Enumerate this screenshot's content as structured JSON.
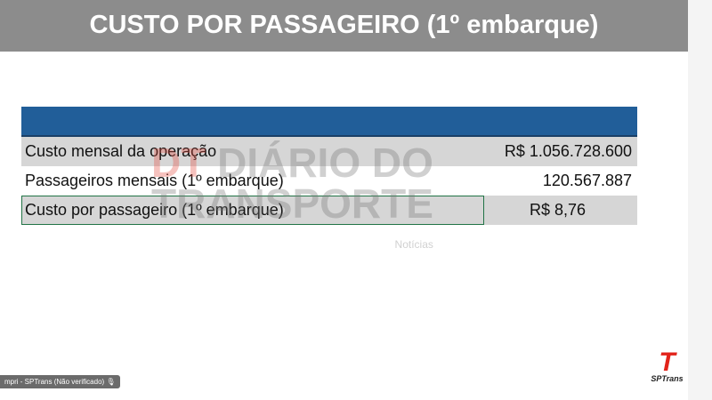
{
  "title": "CUSTO POR PASSAGEIRO (1º embarque)",
  "table": {
    "header_color": "#215e99",
    "rows": [
      {
        "label": "Custo mensal da operação",
        "value": "R$ 1.056.728.600"
      },
      {
        "label": "Passageiros mensais (1º embarque)",
        "value": "120.567.887"
      },
      {
        "label": "Custo por passageiro (1º embarque)",
        "value": "R$ 8,76"
      }
    ]
  },
  "watermark": {
    "brand": "DT",
    "line1": "DIÁRIO DO",
    "line2": "TRANSPORTE",
    "sub": "Notícias"
  },
  "participant_label": "mpri - SPTrans (Não verificado)",
  "logo": {
    "mark": "T",
    "name": "SPTrans",
    "color": "#e2231a"
  }
}
